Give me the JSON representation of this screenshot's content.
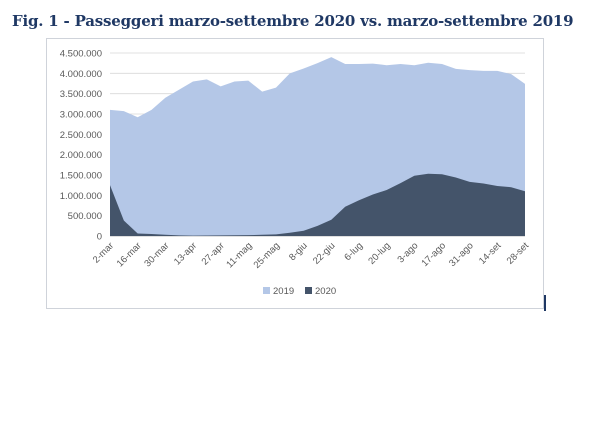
{
  "figure": {
    "title": "Fig. 1 - Passeggeri marzo-settembre 2020 vs. marzo-settembre 2019"
  },
  "chart_data": {
    "type": "area",
    "title": "",
    "xlabel": "",
    "ylabel": "",
    "ylim": [
      0,
      4500000
    ],
    "yticks": [
      0,
      500000,
      1000000,
      1500000,
      2000000,
      2500000,
      3000000,
      3500000,
      4000000,
      4500000
    ],
    "ytick_labels": [
      "0",
      "500.000",
      "1.000.000",
      "1.500.000",
      "2.000.000",
      "2.500.000",
      "3.000.000",
      "3.500.000",
      "4.000.000",
      "4.500.000"
    ],
    "x_tick_labels": [
      "2-mar",
      "16-mar",
      "30-mar",
      "13-apr",
      "27-apr",
      "11-mag",
      "25-mag",
      "8-giu",
      "22-giu",
      "6-lug",
      "20-lug",
      "3-ago",
      "17-ago",
      "31-ago",
      "14-set",
      "28-set"
    ],
    "x_tick_every": 2,
    "grid": true,
    "legend_position": "bottom",
    "series": [
      {
        "name": "2019",
        "color": "#b4c7e7",
        "values": [
          3100000,
          3070000,
          2920000,
          3100000,
          3400000,
          3600000,
          3800000,
          3850000,
          3680000,
          3800000,
          3820000,
          3550000,
          3650000,
          4000000,
          4120000,
          4250000,
          4400000,
          4230000,
          4230000,
          4240000,
          4200000,
          4230000,
          4200000,
          4260000,
          4230000,
          4110000,
          4080000,
          4060000,
          4060000,
          3980000,
          3740000
        ]
      },
      {
        "name": "2020",
        "color": "#44546a",
        "values": [
          1250000,
          380000,
          60000,
          50000,
          30000,
          15000,
          10000,
          12000,
          15000,
          18000,
          22000,
          30000,
          40000,
          80000,
          130000,
          250000,
          400000,
          720000,
          880000,
          1020000,
          1130000,
          1300000,
          1480000,
          1530000,
          1520000,
          1440000,
          1330000,
          1290000,
          1230000,
          1200000,
          1100000
        ]
      }
    ]
  }
}
